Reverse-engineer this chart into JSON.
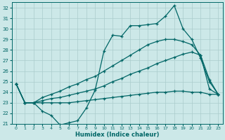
{
  "xlabel": "Humidex (Indice chaleur)",
  "bg_color": "#cce8e8",
  "grid_color": "#aacccc",
  "line_color": "#006666",
  "xlim": [
    -0.5,
    23.5
  ],
  "ylim": [
    21,
    32.5
  ],
  "yticks": [
    21,
    22,
    23,
    24,
    25,
    26,
    27,
    28,
    29,
    30,
    31,
    32
  ],
  "xticks": [
    0,
    1,
    2,
    3,
    4,
    5,
    6,
    7,
    8,
    9,
    10,
    11,
    12,
    13,
    14,
    15,
    16,
    17,
    18,
    19,
    20,
    21,
    22,
    23
  ],
  "series1_y": [
    24.8,
    23.0,
    23.0,
    22.2,
    21.8,
    20.9,
    21.1,
    21.3,
    22.5,
    24.2,
    27.9,
    29.4,
    29.3,
    30.3,
    30.3,
    30.4,
    30.5,
    31.2,
    32.2,
    30.0,
    29.0,
    27.2,
    25.0,
    23.8
  ],
  "series2_y": [
    24.8,
    23.0,
    23.0,
    23.5,
    23.8,
    24.1,
    24.5,
    24.8,
    25.2,
    25.5,
    26.0,
    26.5,
    27.0,
    27.5,
    28.0,
    28.5,
    28.8,
    29.0,
    29.0,
    28.8,
    28.5,
    27.5,
    25.2,
    23.8
  ],
  "series3_y": [
    24.8,
    23.0,
    23.0,
    23.2,
    23.4,
    23.5,
    23.7,
    23.9,
    24.1,
    24.3,
    24.6,
    25.0,
    25.3,
    25.7,
    26.0,
    26.3,
    26.7,
    27.0,
    27.3,
    27.6,
    27.8,
    27.5,
    24.3,
    23.8
  ],
  "series4_y": [
    24.8,
    23.0,
    23.0,
    23.0,
    23.0,
    23.0,
    23.0,
    23.1,
    23.2,
    23.3,
    23.4,
    23.5,
    23.6,
    23.7,
    23.8,
    23.9,
    24.0,
    24.0,
    24.1,
    24.1,
    24.0,
    24.0,
    23.8,
    23.8
  ]
}
